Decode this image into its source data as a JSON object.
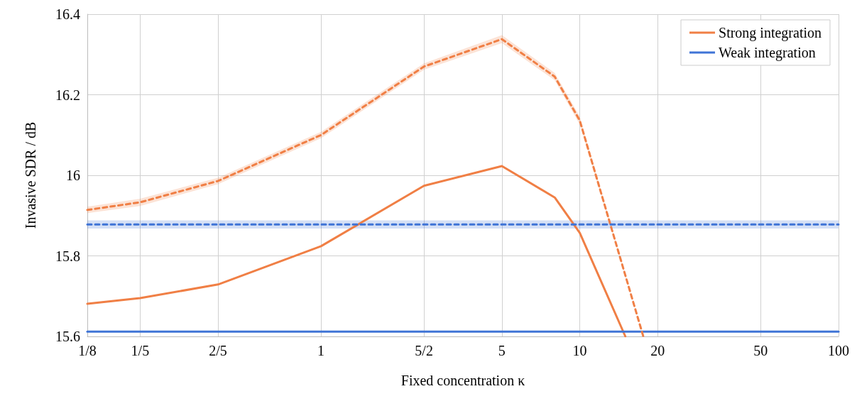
{
  "chart_data": {
    "type": "line",
    "xlabel": "Fixed concentration κ",
    "ylabel": "Invasive SDR / dB",
    "log": "x",
    "xlim": [
      0.125,
      100
    ],
    "xticks": [
      {
        "value": 0.125,
        "label": "1/8"
      },
      {
        "value": 0.2,
        "label": "1/5"
      },
      {
        "value": 0.4,
        "label": "2/5"
      },
      1,
      {
        "value": 2.5,
        "label": "5/2"
      },
      5,
      10,
      20,
      50,
      100
    ],
    "ylim": [
      15.6,
      16.4
    ],
    "yticks": [
      15.6,
      15.8,
      16,
      16.2,
      16.4
    ],
    "grid": true,
    "legend": "top right",
    "marker": "none",
    "series": [
      {
        "name": "Strong integration",
        "color": "#f07f45",
        "line_style": "solid",
        "x": [
          0.125,
          0.2,
          0.4,
          1,
          2.5,
          5,
          8,
          10,
          15
        ],
        "values": [
          15.681,
          15.695,
          15.729,
          15.824,
          15.974,
          16.023,
          15.945,
          15.857,
          15.6
        ]
      },
      {
        "name": "Weak integration",
        "color": "#3f74d6",
        "line_style": "solid",
        "x": [
          0.125,
          100
        ],
        "values": [
          15.612,
          15.612
        ]
      },
      {
        "color": "#f07f45",
        "line_style": "dashed",
        "x": [
          0.125,
          0.2,
          0.4,
          1,
          2.5,
          5,
          8,
          10,
          17.6
        ],
        "values": [
          15.914,
          15.933,
          15.986,
          16.1,
          16.27,
          16.338,
          16.245,
          16.136,
          15.6
        ],
        "lower": [
          15.906,
          15.924,
          15.978,
          16.092,
          16.262,
          16.328,
          16.236,
          16.126,
          15.6
        ],
        "upper": [
          15.922,
          15.942,
          15.994,
          16.108,
          16.278,
          16.348,
          16.254,
          16.146,
          15.6
        ]
      },
      {
        "color": "#3f74d6",
        "line_style": "dashed",
        "x": [
          0.125,
          100
        ],
        "values": [
          15.878,
          15.878
        ],
        "lower": [
          15.868,
          15.868
        ],
        "upper": [
          15.888,
          15.888
        ]
      }
    ]
  }
}
